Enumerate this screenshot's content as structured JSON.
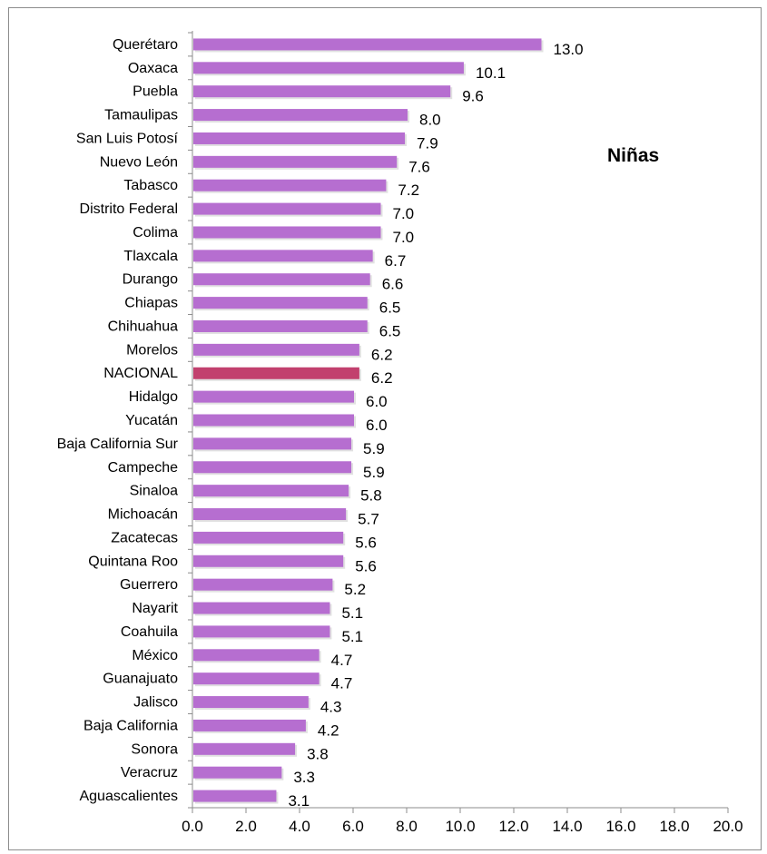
{
  "chart_data": {
    "type": "bar",
    "orientation": "horizontal",
    "title": "Niñas",
    "categories": [
      "Querétaro",
      "Oaxaca",
      "Puebla",
      "Tamaulipas",
      "San Luis Potosí",
      "Nuevo León",
      "Tabasco",
      "Distrito Federal",
      "Colima",
      "Tlaxcala",
      "Durango",
      "Chiapas",
      "Chihuahua",
      "Morelos",
      "NACIONAL",
      "Hidalgo",
      "Yucatán",
      "Baja California Sur",
      "Campeche",
      "Sinaloa",
      "Michoacán",
      "Zacatecas",
      "Quintana Roo",
      "Guerrero",
      "Nayarit",
      "Coahuila",
      "México",
      "Guanajuato",
      "Jalisco",
      "Baja California",
      "Sonora",
      "Veracruz",
      "Aguascalientes"
    ],
    "values": [
      13.0,
      10.1,
      9.6,
      8.0,
      7.9,
      7.6,
      7.2,
      7.0,
      7.0,
      6.7,
      6.6,
      6.5,
      6.5,
      6.2,
      6.2,
      6.0,
      6.0,
      5.9,
      5.9,
      5.8,
      5.7,
      5.6,
      5.6,
      5.2,
      5.1,
      5.1,
      4.7,
      4.7,
      4.3,
      4.2,
      3.8,
      3.3,
      3.1
    ],
    "value_labels": [
      "13.0",
      "10.1",
      "9.6",
      "8.0",
      "7.9",
      "7.6",
      "7.2",
      "7.0",
      "7.0",
      "6.7",
      "6.6",
      "6.5",
      "6.5",
      "6.2",
      "6.2",
      "6.0",
      "6.0",
      "5.9",
      "5.9",
      "5.8",
      "5.7",
      "5.6",
      "5.6",
      "5.2",
      "5.1",
      "5.1",
      "4.7",
      "4.7",
      "4.3",
      "4.2",
      "3.8",
      "3.3",
      "3.1"
    ],
    "xlim": [
      0,
      20
    ],
    "x_ticks": [
      "0.0",
      "2.0",
      "4.0",
      "6.0",
      "8.0",
      "10.0",
      "12.0",
      "14.0",
      "16.0",
      "18.0",
      "20.0"
    ],
    "grid": false,
    "legend": "none",
    "highlight_category": "NACIONAL",
    "colors": {
      "bar": "#b66ed0",
      "highlight": "#c2406e",
      "axis": "#8c8c8c"
    }
  }
}
